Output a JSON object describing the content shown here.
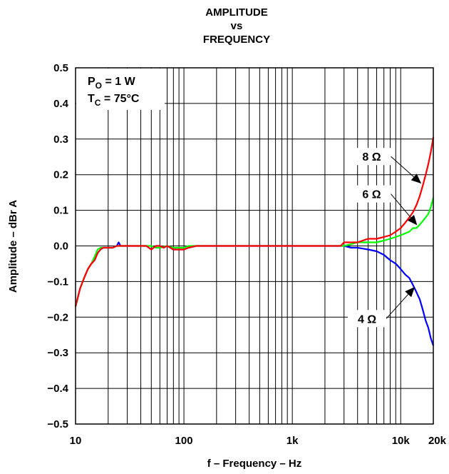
{
  "chart_data": {
    "type": "line",
    "title": [
      "AMPLITUDE",
      "vs",
      "FREQUENCY"
    ],
    "xlabel": "f – Frequency – Hz",
    "ylabel": "Amplitude – dBr A",
    "x_scale": "log",
    "xlim": [
      10,
      20000
    ],
    "ylim": [
      -0.5,
      0.5
    ],
    "grid": true,
    "x_ticks": [
      {
        "value": 10,
        "label": "10"
      },
      {
        "value": 100,
        "label": "100"
      },
      {
        "value": 1000,
        "label": "1k"
      },
      {
        "value": 10000,
        "label": "10k"
      },
      {
        "value": 20000,
        "label": "20k"
      }
    ],
    "y_ticks": [
      {
        "value": 0.5,
        "label": "0.5"
      },
      {
        "value": 0.4,
        "label": "0.4"
      },
      {
        "value": 0.3,
        "label": "0.3"
      },
      {
        "value": 0.2,
        "label": "0.2"
      },
      {
        "value": 0.1,
        "label": "0.1"
      },
      {
        "value": 0.0,
        "label": "0.0"
      },
      {
        "value": -0.1,
        "label": "−0.1"
      },
      {
        "value": -0.2,
        "label": "−0.2"
      },
      {
        "value": -0.3,
        "label": "−0.3"
      },
      {
        "value": -0.4,
        "label": "−0.4"
      },
      {
        "value": -0.5,
        "label": "−0.5"
      }
    ],
    "conditions": [
      {
        "symbol": "P",
        "sub": "O",
        "rest": " = 1 W"
      },
      {
        "symbol": "T",
        "sub": "C",
        "rest": " = 75°C"
      }
    ],
    "series": [
      {
        "name": "4 Ω",
        "color": "#0000ff",
        "label_at": {
          "x": 3900,
          "y": -0.21
        },
        "arrow_to": {
          "x": 13500,
          "y": -0.115
        },
        "points": [
          [
            10,
            -0.17
          ],
          [
            11,
            -0.12
          ],
          [
            12,
            -0.09
          ],
          [
            13,
            -0.065
          ],
          [
            14,
            -0.05
          ],
          [
            15,
            -0.04
          ],
          [
            16,
            -0.02
          ],
          [
            17,
            -0.01
          ],
          [
            18,
            -0.005
          ],
          [
            20,
            -0.005
          ],
          [
            22,
            -0.005
          ],
          [
            24,
            0.0
          ],
          [
            25,
            0.01
          ],
          [
            26,
            0.0
          ],
          [
            28,
            0.0
          ],
          [
            30,
            0.0
          ],
          [
            45,
            0.0
          ],
          [
            50,
            -0.01
          ],
          [
            55,
            0.0
          ],
          [
            60,
            0.0
          ],
          [
            65,
            -0.005
          ],
          [
            70,
            0.0
          ],
          [
            75,
            -0.005
          ],
          [
            80,
            -0.01
          ],
          [
            100,
            -0.01
          ],
          [
            110,
            -0.005
          ],
          [
            130,
            0.0
          ],
          [
            500,
            0.0
          ],
          [
            1000,
            0.0
          ],
          [
            2800,
            0.0
          ],
          [
            3000,
            0.0
          ],
          [
            3500,
            -0.005
          ],
          [
            4000,
            -0.005
          ],
          [
            5000,
            -0.01
          ],
          [
            6000,
            -0.015
          ],
          [
            7000,
            -0.025
          ],
          [
            8000,
            -0.04
          ],
          [
            9000,
            -0.05
          ],
          [
            10000,
            -0.065
          ],
          [
            11000,
            -0.08
          ],
          [
            12000,
            -0.09
          ],
          [
            13000,
            -0.11
          ],
          [
            14000,
            -0.13
          ],
          [
            15000,
            -0.15
          ],
          [
            16000,
            -0.18
          ],
          [
            17000,
            -0.21
          ],
          [
            18000,
            -0.23
          ],
          [
            19000,
            -0.26
          ],
          [
            20000,
            -0.28
          ]
        ]
      },
      {
        "name": "6 Ω",
        "color": "#00ff00",
        "label_at": {
          "x": 4300,
          "y": 0.14
        },
        "arrow_to": {
          "x": 14200,
          "y": 0.058
        },
        "points": [
          [
            10,
            -0.17
          ],
          [
            11,
            -0.12
          ],
          [
            12,
            -0.09
          ],
          [
            13,
            -0.065
          ],
          [
            14,
            -0.05
          ],
          [
            15,
            -0.03
          ],
          [
            16,
            -0.01
          ],
          [
            17,
            -0.005
          ],
          [
            18,
            -0.005
          ],
          [
            20,
            -0.005
          ],
          [
            22,
            -0.005
          ],
          [
            24,
            0.0
          ],
          [
            25,
            0.0
          ],
          [
            30,
            0.0
          ],
          [
            45,
            0.0
          ],
          [
            50,
            0.0
          ],
          [
            55,
            -0.005
          ],
          [
            60,
            -0.005
          ],
          [
            70,
            0.0
          ],
          [
            80,
            -0.005
          ],
          [
            100,
            -0.005
          ],
          [
            110,
            0.0
          ],
          [
            130,
            0.0
          ],
          [
            1000,
            0.0
          ],
          [
            3000,
            0.0
          ],
          [
            3500,
            0.005
          ],
          [
            4000,
            0.01
          ],
          [
            5000,
            0.01
          ],
          [
            6000,
            0.01
          ],
          [
            7000,
            0.015
          ],
          [
            8000,
            0.02
          ],
          [
            9000,
            0.025
          ],
          [
            10000,
            0.03
          ],
          [
            11000,
            0.035
          ],
          [
            12000,
            0.04
          ],
          [
            13000,
            0.05
          ],
          [
            14000,
            0.05
          ],
          [
            15000,
            0.06
          ],
          [
            16000,
            0.07
          ],
          [
            17000,
            0.08
          ],
          [
            18000,
            0.09
          ],
          [
            19000,
            0.11
          ],
          [
            20000,
            0.135
          ]
        ]
      },
      {
        "name": "8 Ω",
        "color": "#ff0000",
        "label_at": {
          "x": 4300,
          "y": 0.245
        },
        "arrow_to": {
          "x": 15500,
          "y": 0.175
        },
        "points": [
          [
            10,
            -0.17
          ],
          [
            11,
            -0.12
          ],
          [
            12,
            -0.09
          ],
          [
            13,
            -0.065
          ],
          [
            14,
            -0.05
          ],
          [
            15,
            -0.04
          ],
          [
            16,
            -0.02
          ],
          [
            17,
            -0.01
          ],
          [
            18,
            -0.005
          ],
          [
            20,
            -0.005
          ],
          [
            22,
            -0.005
          ],
          [
            24,
            0.0
          ],
          [
            25,
            0.0
          ],
          [
            30,
            0.0
          ],
          [
            45,
            0.0
          ],
          [
            50,
            -0.01
          ],
          [
            55,
            0.0
          ],
          [
            60,
            0.0
          ],
          [
            65,
            -0.005
          ],
          [
            70,
            0.0
          ],
          [
            75,
            -0.005
          ],
          [
            80,
            -0.01
          ],
          [
            100,
            -0.01
          ],
          [
            110,
            -0.005
          ],
          [
            130,
            0.0
          ],
          [
            500,
            0.0
          ],
          [
            1000,
            0.0
          ],
          [
            2800,
            0.0
          ],
          [
            3000,
            0.01
          ],
          [
            3500,
            0.01
          ],
          [
            4000,
            0.01
          ],
          [
            5000,
            0.02
          ],
          [
            6000,
            0.02
          ],
          [
            7000,
            0.025
          ],
          [
            8000,
            0.03
          ],
          [
            9000,
            0.04
          ],
          [
            10000,
            0.05
          ],
          [
            11000,
            0.065
          ],
          [
            12000,
            0.08
          ],
          [
            13000,
            0.095
          ],
          [
            14000,
            0.115
          ],
          [
            15000,
            0.14
          ],
          [
            16000,
            0.17
          ],
          [
            17000,
            0.2
          ],
          [
            18000,
            0.23
          ],
          [
            19000,
            0.265
          ],
          [
            20000,
            0.305
          ]
        ]
      }
    ]
  }
}
